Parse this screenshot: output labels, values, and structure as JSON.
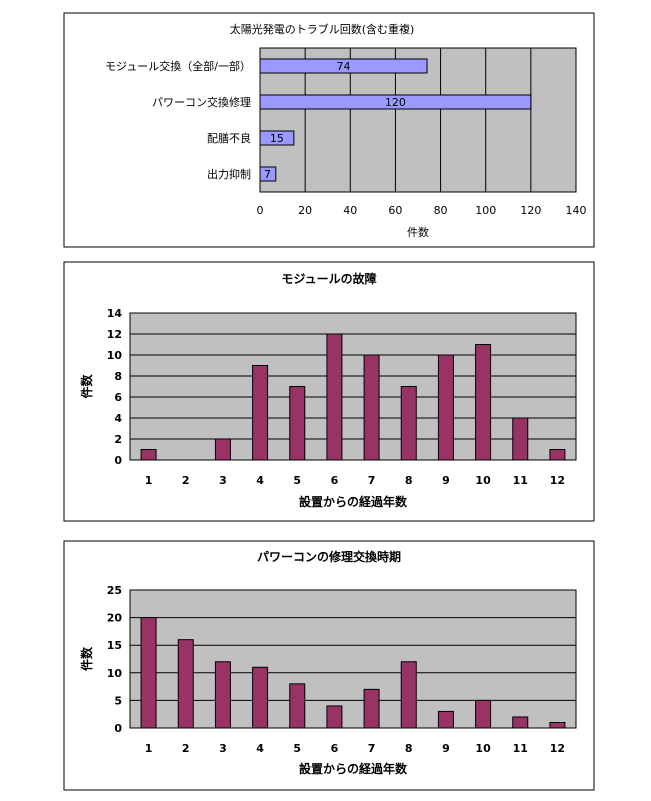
{
  "chart_data": [
    {
      "type": "bar",
      "orientation": "horizontal",
      "title": "太陽光発電のトラブル回数(含む重複)",
      "categories": [
        "モジュール交換（全部/一部）",
        "パワーコン交換修理",
        "配膳不良",
        "出力抑制"
      ],
      "values": [
        74,
        120,
        15,
        7
      ],
      "value_labels": [
        "74",
        "120",
        "15",
        "7"
      ],
      "xlabel": "件数",
      "ylabel": "",
      "xlim": [
        0,
        140
      ],
      "ticks": [
        "0",
        "20",
        "40",
        "60",
        "80",
        "100",
        "120",
        "140"
      ],
      "grid": "vertical",
      "bar_color": "#9999ff",
      "plot_bg": "#c0c0c0"
    },
    {
      "type": "bar",
      "orientation": "vertical",
      "title": "モジュールの故障",
      "categories": [
        "1",
        "2",
        "3",
        "4",
        "5",
        "6",
        "7",
        "8",
        "9",
        "10",
        "11",
        "12"
      ],
      "values": [
        1,
        0,
        2,
        9,
        7,
        12,
        10,
        7,
        10,
        11,
        4,
        1
      ],
      "xlabel": "設置からの経過年数",
      "ylabel": "件数",
      "ylim": [
        0,
        14
      ],
      "ticks": [
        "0",
        "2",
        "4",
        "6",
        "8",
        "10",
        "12",
        "14"
      ],
      "grid": "horizontal",
      "bar_color": "#993366",
      "plot_bg": "#c0c0c0"
    },
    {
      "type": "bar",
      "orientation": "vertical",
      "title": "パワーコンの修理交換時期",
      "categories": [
        "1",
        "2",
        "3",
        "4",
        "5",
        "6",
        "7",
        "8",
        "9",
        "10",
        "11",
        "12"
      ],
      "values": [
        20,
        16,
        12,
        11,
        8,
        4,
        7,
        12,
        3,
        5,
        2,
        1
      ],
      "xlabel": "設置からの経過年数",
      "ylabel": "件数",
      "ylim": [
        0,
        25
      ],
      "ticks": [
        "0",
        "5",
        "10",
        "15",
        "20",
        "25"
      ],
      "grid": "horizontal",
      "bar_color": "#993366",
      "plot_bg": "#c0c0c0"
    }
  ]
}
